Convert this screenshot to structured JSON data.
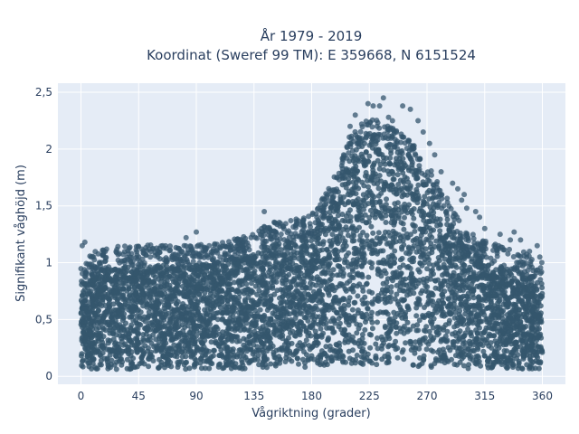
{
  "chart_data": {
    "type": "scatter",
    "title_line1": "År 1979 - 2019",
    "title_line2": "Koordinat (Sweref 99 TM): E 359668, N 6151524",
    "xlabel": "Vågriktning (grader)",
    "ylabel": "Signifikant våghöjd (m)",
    "xlim": [
      -18,
      378
    ],
    "ylim": [
      -0.07,
      2.58
    ],
    "x_ticks": [
      0,
      45,
      90,
      135,
      180,
      225,
      270,
      315,
      360
    ],
    "x_tick_labels": [
      "0",
      "45",
      "90",
      "135",
      "180",
      "225",
      "270",
      "315",
      "360"
    ],
    "y_ticks": [
      0,
      0.5,
      1,
      1.5,
      2,
      2.5
    ],
    "y_tick_labels": [
      "0",
      "0,5",
      "1",
      "1,5",
      "2",
      "2,5"
    ],
    "grid": true,
    "marker_color": "#34566d",
    "plot_bg": "#e5ecf6",
    "envelope": {
      "direction": [
        0,
        10,
        20,
        30,
        45,
        60,
        75,
        90,
        105,
        120,
        135,
        150,
        165,
        180,
        195,
        210,
        225,
        240,
        255,
        270,
        285,
        300,
        315,
        330,
        345,
        360
      ],
      "max_height": [
        0.82,
        0.92,
        0.95,
        0.97,
        0.98,
        0.98,
        0.97,
        0.98,
        1.0,
        1.03,
        1.1,
        1.18,
        1.2,
        1.25,
        1.5,
        1.95,
        2.1,
        2.05,
        1.92,
        1.72,
        1.4,
        1.12,
        1.02,
        0.96,
        0.92,
        0.82
      ],
      "min_height": [
        0.06,
        0.06,
        0.06,
        0.06,
        0.06,
        0.06,
        0.06,
        0.06,
        0.06,
        0.06,
        0.07,
        0.07,
        0.07,
        0.08,
        0.09,
        0.1,
        0.1,
        0.1,
        0.09,
        0.08,
        0.07,
        0.07,
        0.06,
        0.06,
        0.06,
        0.06
      ]
    },
    "outliers": [
      [
        1,
        1.15
      ],
      [
        3,
        1.18
      ],
      [
        8,
        1.05
      ],
      [
        20,
        1.12
      ],
      [
        30,
        1.08
      ],
      [
        45,
        1.05
      ],
      [
        60,
        1.05
      ],
      [
        82,
        1.22
      ],
      [
        90,
        1.27
      ],
      [
        100,
        1.15
      ],
      [
        115,
        1.15
      ],
      [
        122,
        1.2
      ],
      [
        140,
        1.25
      ],
      [
        143,
        1.45
      ],
      [
        152,
        1.35
      ],
      [
        158,
        1.32
      ],
      [
        162,
        1.28
      ],
      [
        172,
        1.22
      ],
      [
        184,
        1.4
      ],
      [
        189,
        1.46
      ],
      [
        200,
        1.75
      ],
      [
        205,
        1.95
      ],
      [
        210,
        2.2
      ],
      [
        214,
        2.3
      ],
      [
        219,
        2.22
      ],
      [
        224,
        2.4
      ],
      [
        228,
        2.38
      ],
      [
        231,
        2.2
      ],
      [
        233,
        2.38
      ],
      [
        236,
        2.45
      ],
      [
        240,
        2.28
      ],
      [
        243,
        2.25
      ],
      [
        251,
        2.38
      ],
      [
        257,
        2.35
      ],
      [
        263,
        2.25
      ],
      [
        267,
        2.15
      ],
      [
        272,
        2.05
      ],
      [
        276,
        1.95
      ],
      [
        281,
        1.8
      ],
      [
        290,
        1.7
      ],
      [
        294,
        1.65
      ],
      [
        297,
        1.55
      ],
      [
        299,
        1.6
      ],
      [
        301,
        1.48
      ],
      [
        308,
        1.45
      ],
      [
        311,
        1.4
      ],
      [
        315,
        1.3
      ],
      [
        327,
        1.25
      ],
      [
        335,
        1.2
      ],
      [
        338,
        1.27
      ],
      [
        343,
        1.2
      ],
      [
        350,
        1.1
      ],
      [
        356,
        1.15
      ],
      [
        358,
        1.05
      ]
    ]
  }
}
